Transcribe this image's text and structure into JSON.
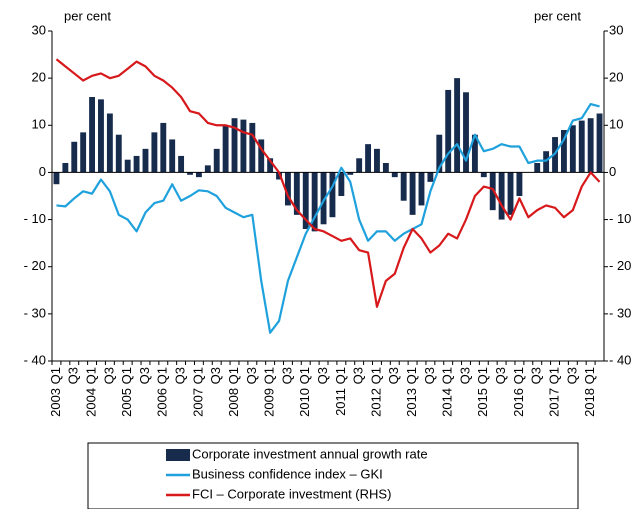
{
  "chart_data": {
    "type": "bar-line",
    "y_label": "per cent",
    "y2_label": "per cent",
    "categories": [
      "2003 Q1",
      null,
      "Q3",
      null,
      "2004 Q1",
      null,
      "Q3",
      null,
      "2005 Q1",
      null,
      "Q3",
      null,
      "2006 Q1",
      null,
      "Q3",
      null,
      "2007 Q1",
      null,
      "Q3",
      null,
      "2008 Q1",
      null,
      "Q3",
      null,
      "2009 Q1",
      null,
      "Q3",
      null,
      "2010 Q1",
      null,
      "Q3",
      null,
      "2011 Q1",
      null,
      "Q3",
      null,
      "2012 Q1",
      null,
      "Q3",
      null,
      "2013 Q1",
      null,
      "Q3",
      null,
      "2014 Q1",
      null,
      "Q3",
      null,
      "2015 Q1",
      null,
      "Q3",
      null,
      "2016 Q1",
      null,
      "Q3",
      null,
      "2017 Q1",
      null,
      "Q3",
      null,
      "2018 Q1",
      null
    ],
    "series": [
      {
        "name": "Corporate investment annual growth rate",
        "type": "bar",
        "color": "#172b4d",
        "values": [
          -2.5,
          2,
          6.5,
          8.5,
          16,
          15.5,
          12.5,
          8,
          2.7,
          3.5,
          5,
          8.5,
          10.5,
          7,
          3.5,
          -0.5,
          -1,
          1.5,
          5,
          10,
          11.5,
          11.2,
          10.5,
          7,
          3,
          -1.5,
          -7,
          -9,
          -12,
          -12.5,
          -11,
          -9.5,
          -5,
          -0.5,
          3,
          6,
          5,
          2,
          -1,
          -6,
          -9,
          -7,
          -2,
          8,
          17.5,
          20,
          17,
          8,
          -1,
          -8,
          -10,
          -9,
          -5,
          0,
          2,
          4.5,
          7.5,
          9,
          10,
          11,
          11.5,
          12.5
        ]
      },
      {
        "name": "Business confidence index – GKI",
        "type": "line",
        "color": "#1ea1dc",
        "values": [
          -7,
          -7.2,
          -5.5,
          -4,
          -4.5,
          -1.5,
          -4,
          -9,
          -10,
          -12.5,
          -8.5,
          -6.5,
          -6,
          -2.5,
          -6,
          -5,
          -3.8,
          -4,
          -5,
          -7.5,
          -8.5,
          -9.5,
          -9,
          -23,
          -34,
          -31.5,
          -23,
          -18,
          -13,
          -9.5,
          -6,
          -3,
          1,
          -2,
          -10,
          -14.5,
          -12.5,
          -12.5,
          -14.5,
          -13,
          -12,
          -11,
          -4,
          1,
          4,
          6,
          2.5,
          8,
          4.5,
          5,
          6,
          5.5,
          5.5,
          2,
          2.5,
          2.5,
          4,
          7,
          11,
          11.5,
          14.5,
          14
        ]
      },
      {
        "name": "FCI – Corporate investment (RHS)",
        "type": "line",
        "axis": "y2",
        "color": "#d7191c",
        "values": [
          24,
          22.5,
          21,
          19.5,
          20.5,
          21,
          20,
          20.5,
          22,
          23.5,
          22.5,
          20.5,
          19.5,
          18,
          16,
          13,
          12.5,
          10.5,
          10,
          10,
          9.5,
          8.5,
          8,
          5,
          2.5,
          0,
          -5,
          -8,
          -10,
          -12,
          -12.5,
          -13.5,
          -14.5,
          -14,
          -16.5,
          -17,
          -28.5,
          -23,
          -21.5,
          -16,
          -12,
          -14,
          -17,
          -15.5,
          -13,
          -14,
          -10,
          -5,
          -3,
          -3.5,
          -7,
          -10,
          -5.5,
          -9.5,
          -8,
          -7,
          -7.5,
          -9.5,
          -8,
          -3,
          0,
          -2
        ]
      }
    ],
    "ylim": [
      -40,
      30
    ],
    "yticks": [
      30,
      20,
      10,
      0,
      {
        "value": -10,
        "label": "- 10"
      },
      {
        "value": -20,
        "label": "- 20"
      },
      {
        "value": -30,
        "label": "- 30"
      },
      {
        "value": -40,
        "label": "- 40"
      }
    ],
    "y2lim": [
      -40,
      30
    ],
    "y2ticks": [
      30,
      20,
      10,
      0,
      {
        "value": -10,
        "label": "- 10"
      },
      {
        "value": -20,
        "label": "- 20"
      },
      {
        "value": -30,
        "label": "- 30"
      },
      {
        "value": -40,
        "label": "- 40"
      }
    ],
    "legend": "bottom"
  }
}
